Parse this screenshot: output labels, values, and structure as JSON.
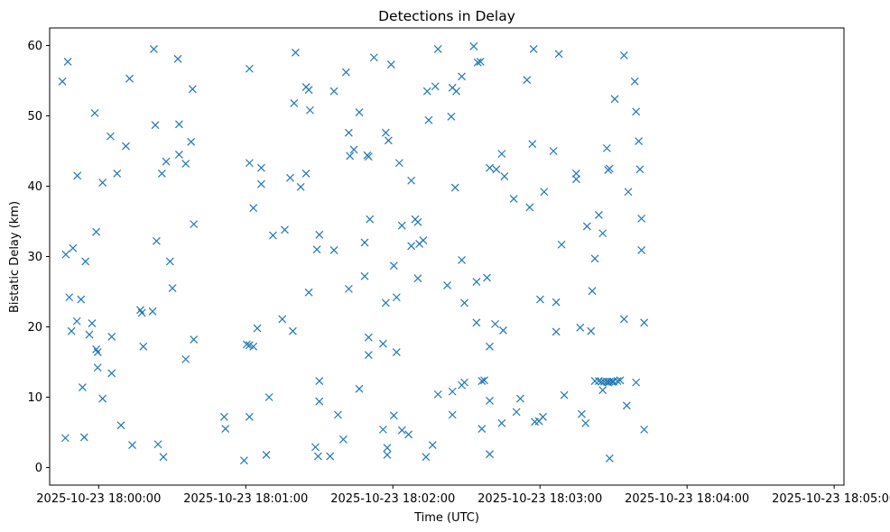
{
  "chart_data": {
    "type": "scatter",
    "title": "Detections in Delay",
    "xlabel": "Time (UTC)",
    "ylabel": "Bistatic Delay (km)",
    "marker": "x",
    "color": "#1f77b4",
    "grid": false,
    "x_unit": "seconds after 2025-10-23 17:59:40 UTC",
    "xlim": [
      0,
      324
    ],
    "ylim": [
      -2.5,
      62.5
    ],
    "x_ticks": [
      {
        "value": 20,
        "label": "2025-10-23 18:00:00"
      },
      {
        "value": 80,
        "label": "2025-10-23 18:01:00"
      },
      {
        "value": 140,
        "label": "2025-10-23 18:02:00"
      },
      {
        "value": 200,
        "label": "2025-10-23 18:03:00"
      },
      {
        "value": 260,
        "label": "2025-10-23 18:04:00"
      },
      {
        "value": 320,
        "label": "2025-10-23 18:05:00"
      }
    ],
    "y_ticks": [
      {
        "value": 0,
        "label": "0"
      },
      {
        "value": 10,
        "label": "10"
      },
      {
        "value": 20,
        "label": "20"
      },
      {
        "value": 30,
        "label": "30"
      },
      {
        "value": 40,
        "label": "40"
      },
      {
        "value": 50,
        "label": "50"
      },
      {
        "value": 60,
        "label": "60"
      }
    ],
    "points": [
      [
        5.2,
        54.9
      ],
      [
        6.4,
        4.2
      ],
      [
        6.6,
        30.3
      ],
      [
        7.4,
        57.7
      ],
      [
        8.0,
        24.2
      ],
      [
        8.9,
        19.4
      ],
      [
        9.5,
        31.2
      ],
      [
        11.1,
        20.8
      ],
      [
        11.3,
        41.5
      ],
      [
        12.8,
        23.9
      ],
      [
        13.4,
        11.4
      ],
      [
        14.1,
        4.3
      ],
      [
        14.6,
        29.3
      ],
      [
        16.2,
        18.9
      ],
      [
        17.3,
        20.5
      ],
      [
        18.4,
        50.4
      ],
      [
        19.0,
        33.5
      ],
      [
        19.0,
        16.8
      ],
      [
        19.6,
        16.4
      ],
      [
        19.6,
        14.2
      ],
      [
        21.6,
        40.5
      ],
      [
        21.6,
        9.8
      ],
      [
        24.8,
        47.1
      ],
      [
        25.3,
        18.6
      ],
      [
        25.3,
        13.4
      ],
      [
        27.5,
        41.8
      ],
      [
        29.1,
        6.0
      ],
      [
        31.1,
        45.7
      ],
      [
        32.6,
        55.3
      ],
      [
        33.7,
        3.2
      ],
      [
        37.0,
        22.4
      ],
      [
        37.6,
        22.0
      ],
      [
        38.2,
        17.2
      ],
      [
        42.0,
        22.2
      ],
      [
        42.5,
        59.5
      ],
      [
        43.1,
        48.7
      ],
      [
        43.6,
        32.2
      ],
      [
        44.2,
        3.3
      ],
      [
        45.8,
        41.8
      ],
      [
        46.4,
        1.5
      ],
      [
        47.5,
        43.5
      ],
      [
        49.1,
        29.3
      ],
      [
        50.1,
        25.5
      ],
      [
        52.3,
        58.1
      ],
      [
        52.8,
        48.8
      ],
      [
        52.8,
        44.5
      ],
      [
        55.5,
        43.2
      ],
      [
        55.5,
        15.4
      ],
      [
        57.7,
        46.3
      ],
      [
        58.3,
        53.8
      ],
      [
        58.8,
        34.6
      ],
      [
        58.8,
        18.2
      ],
      [
        71.2,
        7.2
      ],
      [
        71.7,
        5.5
      ],
      [
        79.3,
        1.0
      ],
      [
        80.4,
        17.5
      ],
      [
        81.5,
        17.4
      ],
      [
        81.5,
        7.2
      ],
      [
        81.5,
        43.3
      ],
      [
        81.5,
        56.7
      ],
      [
        83.1,
        17.2
      ],
      [
        83.1,
        36.9
      ],
      [
        84.7,
        19.8
      ],
      [
        86.3,
        42.6
      ],
      [
        86.3,
        40.3
      ],
      [
        88.4,
        1.8
      ],
      [
        89.5,
        10.0
      ],
      [
        91.1,
        33.0
      ],
      [
        94.9,
        21.1
      ],
      [
        95.9,
        33.8
      ],
      [
        98.1,
        41.2
      ],
      [
        99.2,
        19.4
      ],
      [
        99.7,
        51.8
      ],
      [
        100.3,
        59.0
      ],
      [
        102.4,
        39.9
      ],
      [
        104.6,
        41.8
      ],
      [
        104.6,
        54.1
      ],
      [
        105.7,
        53.7
      ],
      [
        105.7,
        24.9
      ],
      [
        106.2,
        50.8
      ],
      [
        108.4,
        2.9
      ],
      [
        109.0,
        31.0
      ],
      [
        109.5,
        1.6
      ],
      [
        110.0,
        33.1
      ],
      [
        110.0,
        12.3
      ],
      [
        110.0,
        9.4
      ],
      [
        114.4,
        1.6
      ],
      [
        116.0,
        53.5
      ],
      [
        116.0,
        30.9
      ],
      [
        117.6,
        7.5
      ],
      [
        119.8,
        4.0
      ],
      [
        120.9,
        56.2
      ],
      [
        122.0,
        47.6
      ],
      [
        122.0,
        25.4
      ],
      [
        122.5,
        44.3
      ],
      [
        124.1,
        45.2
      ],
      [
        126.3,
        50.5
      ],
      [
        126.3,
        11.2
      ],
      [
        128.5,
        32.0
      ],
      [
        128.5,
        27.2
      ],
      [
        129.6,
        44.4
      ],
      [
        130.1,
        44.2
      ],
      [
        130.1,
        18.5
      ],
      [
        130.1,
        16.0
      ],
      [
        130.6,
        35.3
      ],
      [
        132.3,
        58.3
      ],
      [
        136.0,
        17.6
      ],
      [
        136.0,
        5.4
      ],
      [
        137.1,
        47.6
      ],
      [
        137.1,
        23.4
      ],
      [
        137.7,
        2.8
      ],
      [
        137.7,
        1.8
      ],
      [
        138.2,
        46.5
      ],
      [
        139.3,
        57.3
      ],
      [
        140.4,
        28.7
      ],
      [
        140.4,
        7.4
      ],
      [
        141.5,
        24.2
      ],
      [
        141.5,
        16.4
      ],
      [
        142.6,
        43.3
      ],
      [
        143.7,
        5.3
      ],
      [
        143.7,
        34.4
      ],
      [
        146.4,
        4.7
      ],
      [
        147.5,
        40.8
      ],
      [
        147.5,
        31.5
      ],
      [
        149.1,
        35.3
      ],
      [
        150.2,
        34.9
      ],
      [
        150.2,
        26.9
      ],
      [
        150.8,
        31.8
      ],
      [
        152.4,
        32.3
      ],
      [
        153.5,
        1.5
      ],
      [
        154.0,
        53.5
      ],
      [
        154.6,
        49.4
      ],
      [
        156.2,
        3.2
      ],
      [
        157.3,
        54.2
      ],
      [
        158.4,
        59.5
      ],
      [
        158.4,
        10.4
      ],
      [
        162.2,
        25.9
      ],
      [
        163.8,
        49.9
      ],
      [
        164.3,
        54.0
      ],
      [
        164.3,
        10.8
      ],
      [
        164.3,
        7.5
      ],
      [
        165.4,
        39.8
      ],
      [
        165.9,
        53.5
      ],
      [
        168.1,
        55.6
      ],
      [
        168.1,
        29.5
      ],
      [
        168.1,
        11.7
      ],
      [
        169.2,
        23.4
      ],
      [
        169.2,
        12.1
      ],
      [
        173.0,
        59.9
      ],
      [
        174.1,
        26.4
      ],
      [
        174.1,
        20.6
      ],
      [
        174.6,
        57.6
      ],
      [
        175.7,
        57.7
      ],
      [
        176.3,
        12.3
      ],
      [
        176.3,
        5.5
      ],
      [
        177.3,
        12.4
      ],
      [
        178.4,
        27.0
      ],
      [
        179.5,
        42.6
      ],
      [
        179.5,
        17.2
      ],
      [
        179.5,
        9.5
      ],
      [
        179.5,
        1.9
      ],
      [
        181.7,
        20.4
      ],
      [
        182.2,
        42.4
      ],
      [
        184.4,
        44.6
      ],
      [
        184.4,
        6.3
      ],
      [
        185.0,
        19.5
      ],
      [
        185.5,
        41.4
      ],
      [
        189.3,
        38.2
      ],
      [
        190.4,
        7.9
      ],
      [
        192.0,
        9.8
      ],
      [
        194.7,
        55.1
      ],
      [
        195.8,
        37.0
      ],
      [
        196.9,
        46.0
      ],
      [
        197.4,
        59.5
      ],
      [
        197.9,
        6.5
      ],
      [
        199.6,
        6.6
      ],
      [
        200.1,
        23.9
      ],
      [
        201.2,
        7.2
      ],
      [
        201.7,
        39.2
      ],
      [
        205.5,
        45.0
      ],
      [
        206.6,
        23.5
      ],
      [
        206.6,
        19.3
      ],
      [
        207.7,
        58.8
      ],
      [
        208.8,
        31.7
      ],
      [
        209.9,
        10.3
      ],
      [
        214.8,
        41.8
      ],
      [
        214.8,
        41.0
      ],
      [
        216.4,
        19.9
      ],
      [
        217.0,
        7.6
      ],
      [
        218.6,
        6.3
      ],
      [
        219.2,
        34.3
      ],
      [
        220.8,
        19.4
      ],
      [
        221.3,
        25.1
      ],
      [
        222.4,
        29.7
      ],
      [
        222.4,
        12.3
      ],
      [
        224.0,
        12.3
      ],
      [
        224.0,
        35.9
      ],
      [
        225.1,
        12.2
      ],
      [
        225.6,
        11.0
      ],
      [
        225.6,
        33.3
      ],
      [
        226.2,
        12.2
      ],
      [
        227.3,
        12.2
      ],
      [
        227.3,
        45.4
      ],
      [
        227.8,
        12.1
      ],
      [
        227.8,
        42.3
      ],
      [
        228.4,
        12.2
      ],
      [
        228.4,
        42.5
      ],
      [
        228.4,
        1.3
      ],
      [
        229.4,
        12.2
      ],
      [
        230.0,
        12.2
      ],
      [
        230.5,
        52.4
      ],
      [
        231.6,
        12.3
      ],
      [
        232.7,
        12.4
      ],
      [
        234.3,
        58.6
      ],
      [
        234.3,
        21.1
      ],
      [
        235.4,
        8.8
      ],
      [
        236.0,
        39.2
      ],
      [
        238.7,
        54.9
      ],
      [
        239.2,
        50.6
      ],
      [
        239.2,
        12.1
      ],
      [
        240.3,
        46.4
      ],
      [
        240.8,
        42.4
      ],
      [
        241.4,
        35.4
      ],
      [
        241.4,
        30.9
      ],
      [
        242.5,
        20.6
      ],
      [
        242.5,
        5.4
      ]
    ]
  }
}
